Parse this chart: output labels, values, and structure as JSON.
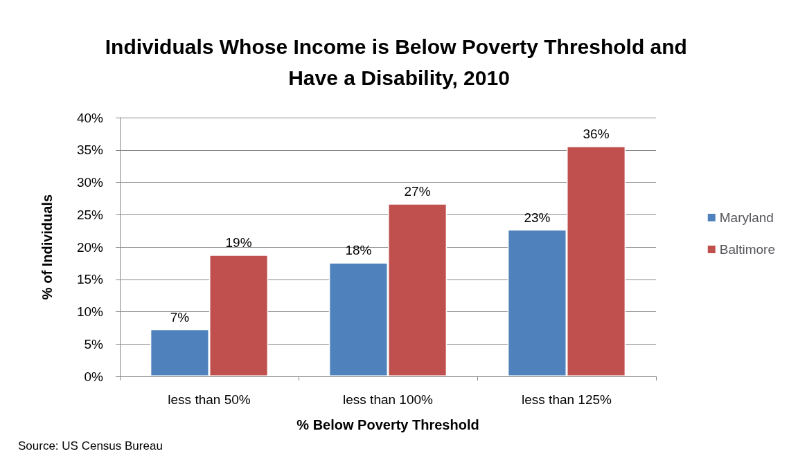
{
  "chart_data": {
    "type": "bar",
    "title": "Individuals Whose Income is Below Poverty Threshold and Have a Disability, 2010",
    "xlabel": "% Below Poverty Threshold",
    "ylabel": "% of Individuals",
    "categories": [
      "less than 50%",
      "less than 100%",
      "less than 125%"
    ],
    "series": [
      {
        "name": "Maryland",
        "color": "#4f81bd",
        "values": [
          7.3,
          17.6,
          22.7
        ],
        "value_labels": [
          "7%",
          "18%",
          "23%"
        ]
      },
      {
        "name": "Baltimore",
        "color": "#c0504d",
        "values": [
          18.8,
          26.7,
          35.6
        ],
        "value_labels": [
          "19%",
          "27%",
          "36%"
        ]
      }
    ],
    "ylim": [
      0,
      40
    ],
    "yticks": [
      {
        "value": 0,
        "label": "0%"
      },
      {
        "value": 5,
        "label": "5%"
      },
      {
        "value": 10,
        "label": "10%"
      },
      {
        "value": 15,
        "label": "15%"
      },
      {
        "value": 20,
        "label": "20%"
      },
      {
        "value": 25,
        "label": "25%"
      },
      {
        "value": 30,
        "label": "30%"
      },
      {
        "value": 35,
        "label": "35%"
      },
      {
        "value": 40,
        "label": "40%"
      }
    ],
    "grid": "y",
    "legend": "right",
    "annotations": [
      "Source: US Census Bureau"
    ]
  }
}
